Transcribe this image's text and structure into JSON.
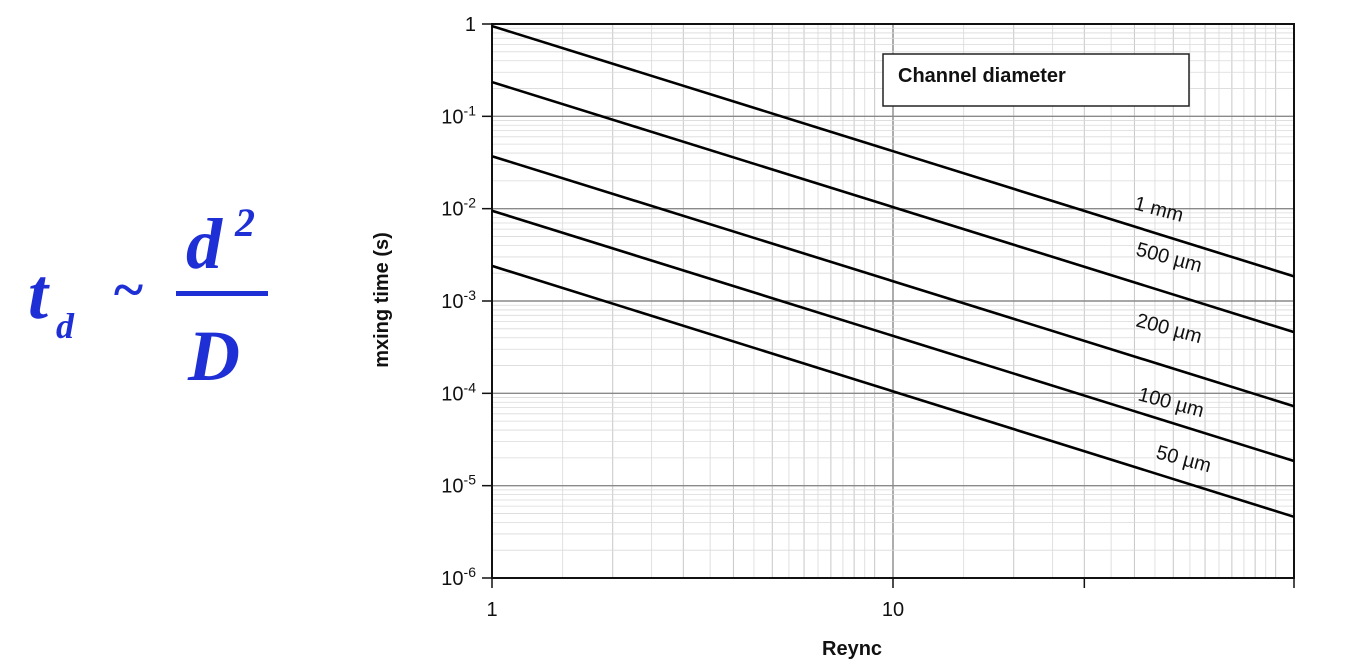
{
  "formula": {
    "lhs_base": "t",
    "lhs_sub": "d",
    "relation": "~",
    "numerator_base": "d",
    "numerator_exp": "2",
    "denominator": "D",
    "color": "#1f2fd6"
  },
  "chart_data": {
    "type": "line",
    "title": "",
    "xlabel": "Reync",
    "ylabel": "mxing time (s)",
    "x_scale": "log",
    "y_scale": "log",
    "xlim": [
      1,
      100
    ],
    "ylim": [
      1e-06,
      1
    ],
    "x_ticks": [
      {
        "value": 1,
        "label": "1"
      },
      {
        "value": 10,
        "label": "10"
      }
    ],
    "y_ticks": [
      {
        "value": 1,
        "base": "1",
        "exp": ""
      },
      {
        "value": 0.1,
        "base": "10",
        "exp": "-1"
      },
      {
        "value": 0.01,
        "base": "10",
        "exp": "-2"
      },
      {
        "value": 0.001,
        "base": "10",
        "exp": "-3"
      },
      {
        "value": 0.0001,
        "base": "10",
        "exp": "-4"
      },
      {
        "value": 1e-05,
        "base": "10",
        "exp": "-5"
      },
      {
        "value": 1e-06,
        "base": "10",
        "exp": "-6"
      }
    ],
    "grid": true,
    "legend_title": "Channel diameter",
    "legend_placement": "top-right",
    "series": [
      {
        "name": "1 mm",
        "x": [
          1,
          100
        ],
        "y": [
          0.95,
          0.00185
        ]
      },
      {
        "name": "500 µm",
        "x": [
          1,
          100
        ],
        "y": [
          0.235,
          0.00046
        ]
      },
      {
        "name": "200 µm",
        "x": [
          1,
          100
        ],
        "y": [
          0.037,
          7.25e-05
        ]
      },
      {
        "name": "100 µm",
        "x": [
          1,
          100
        ],
        "y": [
          0.0095,
          1.85e-05
        ]
      },
      {
        "name": "50 µm",
        "x": [
          1,
          100
        ],
        "y": [
          0.0024,
          4.6e-06
        ]
      }
    ],
    "line_color": "#000000"
  }
}
